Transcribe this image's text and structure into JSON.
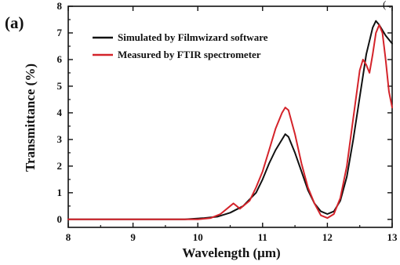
{
  "panel_label": "(a)",
  "corner_text": "( .",
  "chart_data": {
    "type": "line",
    "title": "",
    "xlabel": "Wavelength (μm)",
    "ylabel": "Transmittance (%)",
    "xlim": [
      8,
      13
    ],
    "ylim": [
      -0.3,
      8
    ],
    "xticks": [
      8,
      9,
      10,
      11,
      12,
      13
    ],
    "yticks": [
      0,
      1,
      2,
      3,
      4,
      5,
      6,
      7,
      8
    ],
    "grid": false,
    "legend_position": "top-left",
    "series": [
      {
        "name": "Simulated by Filmwizard software",
        "color": "#111111",
        "x": [
          8.0,
          9.0,
          9.8,
          10.1,
          10.3,
          10.5,
          10.7,
          10.9,
          11.0,
          11.1,
          11.2,
          11.3,
          11.35,
          11.4,
          11.5,
          11.6,
          11.7,
          11.8,
          11.9,
          12.0,
          12.1,
          12.2,
          12.3,
          12.4,
          12.5,
          12.6,
          12.7,
          12.75,
          12.8,
          12.9,
          13.0
        ],
        "y": [
          0,
          0,
          0,
          0.05,
          0.1,
          0.25,
          0.5,
          1.0,
          1.5,
          2.1,
          2.6,
          3.0,
          3.2,
          3.1,
          2.5,
          1.8,
          1.1,
          0.6,
          0.3,
          0.2,
          0.3,
          0.7,
          1.6,
          3.0,
          4.6,
          6.2,
          7.2,
          7.45,
          7.3,
          6.9,
          6.6
        ]
      },
      {
        "name": "Measured by FTIR spectrometer",
        "color": "#d4232a",
        "x": [
          8.0,
          9.0,
          10.0,
          10.2,
          10.35,
          10.5,
          10.55,
          10.65,
          10.8,
          10.9,
          11.0,
          11.1,
          11.2,
          11.3,
          11.35,
          11.4,
          11.5,
          11.6,
          11.7,
          11.8,
          11.9,
          12.0,
          12.1,
          12.2,
          12.3,
          12.4,
          12.5,
          12.55,
          12.6,
          12.65,
          12.7,
          12.75,
          12.8,
          12.85,
          12.9,
          12.95,
          13.0
        ],
        "y": [
          0,
          0,
          0,
          0.05,
          0.2,
          0.5,
          0.6,
          0.4,
          0.7,
          1.2,
          1.8,
          2.6,
          3.4,
          4.0,
          4.2,
          4.1,
          3.2,
          2.1,
          1.2,
          0.6,
          0.15,
          0.05,
          0.2,
          0.8,
          2.0,
          3.8,
          5.6,
          6.0,
          5.8,
          5.5,
          6.2,
          7.0,
          7.3,
          7.0,
          6.0,
          4.8,
          4.2
        ]
      }
    ]
  }
}
